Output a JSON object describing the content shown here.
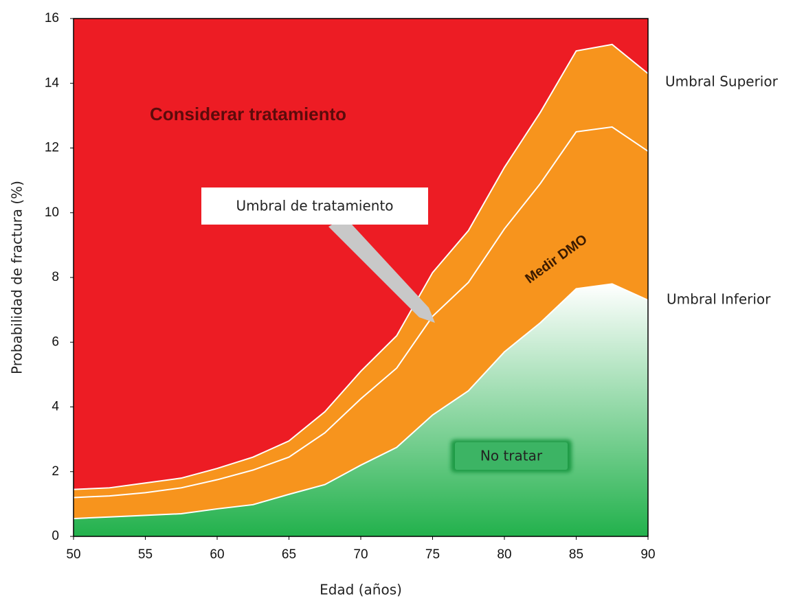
{
  "chart_data": {
    "type": "area",
    "x": [
      50,
      52.5,
      55,
      57.5,
      60,
      62.5,
      65,
      67.5,
      70,
      72.5,
      75,
      77.5,
      80,
      82.5,
      85,
      87.5,
      90
    ],
    "series": [
      {
        "name": "Umbral Superior",
        "color": "#f7941d",
        "values": [
          1.45,
          1.5,
          1.65,
          1.8,
          2.1,
          2.45,
          2.95,
          3.85,
          5.1,
          6.2,
          8.15,
          9.45,
          11.4,
          13.1,
          15.0,
          15.2,
          14.3
        ]
      },
      {
        "name": "Umbral de tratamiento",
        "color": "#ffffff",
        "values": [
          1.2,
          1.25,
          1.35,
          1.5,
          1.75,
          2.05,
          2.45,
          3.2,
          4.25,
          5.2,
          6.8,
          7.85,
          9.5,
          10.9,
          12.5,
          12.65,
          11.9
        ]
      },
      {
        "name": "Umbral Inferior",
        "color": "#22b14c",
        "values": [
          0.55,
          0.6,
          0.65,
          0.7,
          0.85,
          0.98,
          1.3,
          1.6,
          2.2,
          2.75,
          3.75,
          4.5,
          5.7,
          6.6,
          7.65,
          7.8,
          7.3
        ]
      }
    ],
    "background": "#ed1c24",
    "xlim": [
      50,
      90
    ],
    "xticks": [
      50,
      55,
      60,
      65,
      70,
      75,
      80,
      85,
      90
    ],
    "ylim": [
      0,
      16
    ],
    "yticks": [
      0,
      2,
      4,
      6,
      8,
      10,
      12,
      14,
      16
    ],
    "xlabel": "Edad (años)",
    "ylabel": "Probabilidad de fractura  (%)",
    "annotations": [
      "Considerar tratamiento",
      "Medir DMO",
      "No tratar"
    ]
  }
}
